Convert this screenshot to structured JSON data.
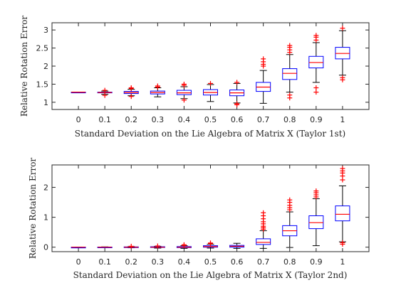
{
  "chart_data": [
    {
      "type": "box",
      "xlabel": "Standard Deviation on the Lie Algebra of Matrix X (Taylor 1st)",
      "ylabel": "Relative Rotation Error",
      "categories": [
        "0",
        "0.1",
        "0.2",
        "0.3",
        "0.4",
        "0.5",
        "0.6",
        "0.7",
        "0.8",
        "0.9",
        "1"
      ],
      "ylim": [
        0.8,
        3.2
      ],
      "yticks": [
        1,
        1.5,
        2,
        2.5,
        3
      ],
      "ytick_labels": [
        "1",
        "1.5",
        "2",
        "2.5",
        "3"
      ],
      "boxes": [
        {
          "x": "0",
          "q1": 1.28,
          "median": 1.28,
          "q3": 1.28,
          "whisker_low": 1.28,
          "whisker_high": 1.28,
          "outliers": []
        },
        {
          "x": "0.1",
          "q1": 1.26,
          "median": 1.27,
          "q3": 1.28,
          "whisker_low": 1.22,
          "whisker_high": 1.31,
          "outliers": [
            1.19,
            1.33
          ]
        },
        {
          "x": "0.2",
          "q1": 1.24,
          "median": 1.27,
          "q3": 1.3,
          "whisker_low": 1.18,
          "whisker_high": 1.36,
          "outliers": [
            1.16,
            1.38,
            1.4
          ]
        },
        {
          "x": "0.3",
          "q1": 1.23,
          "median": 1.27,
          "q3": 1.31,
          "whisker_low": 1.15,
          "whisker_high": 1.4,
          "outliers": [
            1.42,
            1.45
          ]
        },
        {
          "x": "0.4",
          "q1": 1.21,
          "median": 1.26,
          "q3": 1.33,
          "whisker_low": 1.1,
          "whisker_high": 1.43,
          "outliers": [
            1.06,
            1.47,
            1.5
          ]
        },
        {
          "x": "0.5",
          "q1": 1.2,
          "median": 1.27,
          "q3": 1.35,
          "whisker_low": 1.02,
          "whisker_high": 1.49,
          "outliers": [
            1.52
          ]
        },
        {
          "x": "0.6",
          "q1": 1.18,
          "median": 1.26,
          "q3": 1.34,
          "whisker_low": 0.98,
          "whisker_high": 1.52,
          "outliers": [
            0.93,
            0.96,
            1.55
          ]
        },
        {
          "x": "0.7",
          "q1": 1.3,
          "median": 1.42,
          "q3": 1.55,
          "whisker_low": 0.97,
          "whisker_high": 1.88,
          "outliers": [
            2.0,
            2.05,
            2.12,
            2.2
          ]
        },
        {
          "x": "0.8",
          "q1": 1.63,
          "median": 1.8,
          "q3": 1.93,
          "whisker_low": 1.28,
          "whisker_high": 2.32,
          "outliers": [
            1.12,
            1.2,
            2.38,
            2.45,
            2.52,
            2.57
          ]
        },
        {
          "x": "0.9",
          "q1": 1.95,
          "median": 2.1,
          "q3": 2.27,
          "whisker_low": 1.55,
          "whisker_high": 2.65,
          "outliers": [
            1.28,
            1.4,
            2.72,
            2.8,
            2.85
          ]
        },
        {
          "x": "1",
          "q1": 2.2,
          "median": 2.35,
          "q3": 2.52,
          "whisker_low": 1.75,
          "whisker_high": 2.98,
          "outliers": [
            1.62,
            1.68,
            3.05
          ]
        }
      ]
    },
    {
      "type": "box",
      "xlabel": "Standard Deviation on the Lie Algebra of Matrix X (Taylor 2nd)",
      "ylabel": "Relative Rotation Error",
      "categories": [
        "0",
        "0.1",
        "0.2",
        "0.3",
        "0.4",
        "0.5",
        "0.6",
        "0.7",
        "0.8",
        "0.9",
        "1"
      ],
      "ylim": [
        -0.15,
        2.75
      ],
      "yticks": [
        0,
        1,
        2
      ],
      "ytick_labels": [
        "0",
        "1",
        "2"
      ],
      "boxes": [
        {
          "x": "0",
          "q1": 0.0,
          "median": 0.0,
          "q3": 0.0,
          "whisker_low": 0.0,
          "whisker_high": 0.0,
          "outliers": []
        },
        {
          "x": "0.1",
          "q1": -0.005,
          "median": 0.0,
          "q3": 0.005,
          "whisker_low": -0.01,
          "whisker_high": 0.01,
          "outliers": []
        },
        {
          "x": "0.2",
          "q1": -0.01,
          "median": 0.0,
          "q3": 0.01,
          "whisker_low": -0.02,
          "whisker_high": 0.02,
          "outliers": [
            0.03
          ]
        },
        {
          "x": "0.3",
          "q1": -0.01,
          "median": 0.0,
          "q3": 0.015,
          "whisker_low": -0.03,
          "whisker_high": 0.03,
          "outliers": [
            0.04
          ]
        },
        {
          "x": "0.4",
          "q1": -0.015,
          "median": 0.0,
          "q3": 0.02,
          "whisker_low": -0.04,
          "whisker_high": 0.05,
          "outliers": [
            0.06,
            0.08
          ]
        },
        {
          "x": "0.5",
          "q1": 0.0,
          "median": 0.02,
          "q3": 0.05,
          "whisker_low": -0.03,
          "whisker_high": 0.1,
          "outliers": [
            0.12,
            0.14
          ]
        },
        {
          "x": "0.6",
          "q1": 0.0,
          "median": 0.03,
          "q3": 0.06,
          "whisker_low": -0.04,
          "whisker_high": 0.13,
          "outliers": []
        },
        {
          "x": "0.7",
          "q1": 0.09,
          "median": 0.16,
          "q3": 0.28,
          "whisker_low": -0.04,
          "whisker_high": 0.55,
          "outliers": [
            0.6,
            0.65,
            0.7,
            0.78,
            0.85,
            0.95,
            1.05,
            1.15
          ]
        },
        {
          "x": "0.8",
          "q1": 0.38,
          "median": 0.55,
          "q3": 0.72,
          "whisker_low": -0.01,
          "whisker_high": 1.18,
          "outliers": [
            1.25,
            1.32,
            1.4,
            1.5,
            1.58
          ]
        },
        {
          "x": "0.9",
          "q1": 0.62,
          "median": 0.82,
          "q3": 1.05,
          "whisker_low": 0.05,
          "whisker_high": 1.62,
          "outliers": [
            1.68,
            1.75,
            1.82,
            1.88
          ]
        },
        {
          "x": "1",
          "q1": 0.88,
          "median": 1.1,
          "q3": 1.38,
          "whisker_low": 0.18,
          "whisker_high": 2.05,
          "outliers": [
            0.1,
            0.15,
            2.25,
            2.38,
            2.48,
            2.55,
            2.63
          ]
        }
      ]
    }
  ],
  "colors": {
    "box": "#0000ff",
    "median": "#ff0000",
    "whisker": "#000000",
    "outlier": "#ff0000",
    "axes": "#262626"
  }
}
